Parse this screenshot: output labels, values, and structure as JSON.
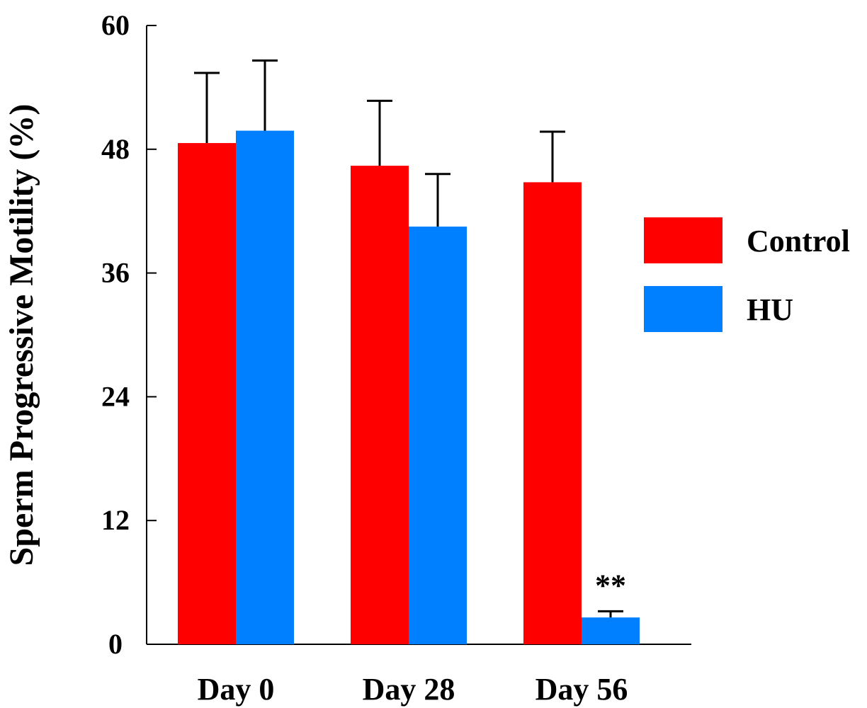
{
  "chart_data": {
    "type": "bar",
    "title": "",
    "xlabel": "",
    "ylabel": "Sperm Progressive Motility (%)",
    "ylim": [
      0,
      60
    ],
    "yticks": [
      0,
      12,
      24,
      36,
      48,
      60
    ],
    "grid": false,
    "legend_position": "right",
    "categories": [
      "Day 0",
      "Day 28",
      "Day 56"
    ],
    "series": [
      {
        "name": "Control",
        "color": "#ff0000",
        "values": [
          48.6,
          46.4,
          44.8
        ],
        "errors": [
          6.8,
          6.3,
          4.9
        ]
      },
      {
        "name": "HU",
        "color": "#0080ff",
        "values": [
          49.8,
          40.5,
          2.6
        ],
        "errors": [
          6.8,
          5.1,
          0.6
        ]
      }
    ],
    "annotations": [
      {
        "category": "Day 56",
        "series": "HU",
        "text": "**"
      }
    ]
  }
}
